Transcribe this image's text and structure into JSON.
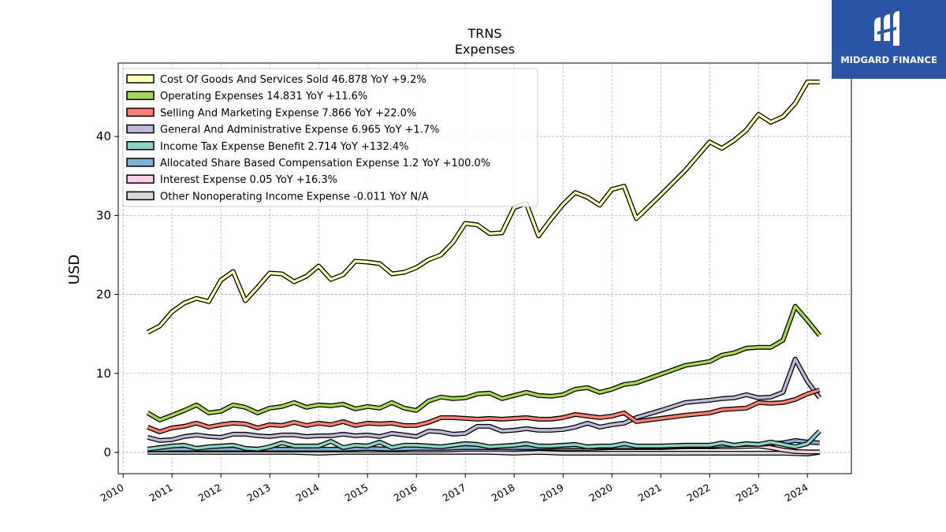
{
  "logo": {
    "text": "MIDGARD FINANCE",
    "color": "#2b55a6"
  },
  "chart_data": {
    "type": "line",
    "title": "TRNS",
    "subtitle": "Expenses",
    "xlabel": "",
    "ylabel": "USD",
    "xlim": [
      2009.9,
      2024.9
    ],
    "ylim": [
      -2.7,
      49.3
    ],
    "yticks": [
      0,
      10,
      20,
      30,
      40
    ],
    "xticks": [
      "2010",
      "2011",
      "2012",
      "2013",
      "2014",
      "2015",
      "2016",
      "2017",
      "2018",
      "2019",
      "2020",
      "2021",
      "2022",
      "2023",
      "2024"
    ],
    "grid": true,
    "legend_position": "top-left",
    "series": [
      {
        "name": "Cost Of Goods And Services Sold",
        "legend": "Cost Of Goods And Services Sold  46.878 YoY +9.2%",
        "color": "#ffffb3",
        "x": [
          2010.5,
          2010.75,
          2011.0,
          2011.25,
          2011.5,
          2011.75,
          2012.0,
          2012.25,
          2012.5,
          2012.75,
          2013.0,
          2013.25,
          2013.5,
          2013.75,
          2014.0,
          2014.25,
          2014.5,
          2014.75,
          2015.0,
          2015.25,
          2015.5,
          2015.75,
          2016.0,
          2016.25,
          2016.5,
          2016.75,
          2017.0,
          2017.25,
          2017.5,
          2017.75,
          2018.0,
          2018.25,
          2018.5,
          2018.75,
          2019.0,
          2019.25,
          2019.5,
          2019.75,
          2020.0,
          2020.25,
          2020.5,
          2021.0,
          2021.5,
          2022.0,
          2022.25,
          2022.5,
          2022.75,
          2023.0,
          2023.25,
          2023.5,
          2023.75,
          2024.0,
          2024.25
        ],
        "values": [
          15.2,
          16.0,
          17.8,
          18.9,
          19.5,
          19.1,
          21.8,
          22.9,
          19.2,
          20.9,
          22.7,
          22.6,
          21.6,
          22.3,
          23.6,
          21.9,
          22.5,
          24.2,
          24.1,
          23.9,
          22.6,
          22.8,
          23.4,
          24.4,
          25.0,
          26.6,
          29.0,
          28.8,
          27.7,
          27.8,
          31.0,
          31.5,
          27.4,
          29.5,
          31.4,
          32.9,
          32.3,
          31.3,
          33.3,
          33.7,
          29.6,
          32.6,
          35.7,
          39.3,
          38.5,
          39.5,
          40.8,
          42.8,
          41.8,
          42.5,
          44.2,
          46.9,
          46.9
        ]
      },
      {
        "name": "Operating Expenses",
        "legend": "Operating Expenses  14.831 YoY +11.6%",
        "color": "#a6d854",
        "x": [
          2010.5,
          2010.75,
          2011.0,
          2011.25,
          2011.5,
          2011.75,
          2012.0,
          2012.25,
          2012.5,
          2012.75,
          2013.0,
          2013.25,
          2013.5,
          2013.75,
          2014.0,
          2014.25,
          2014.5,
          2014.75,
          2015.0,
          2015.25,
          2015.5,
          2015.75,
          2016.0,
          2016.25,
          2016.5,
          2016.75,
          2017.0,
          2017.25,
          2017.5,
          2017.75,
          2018.0,
          2018.25,
          2018.5,
          2018.75,
          2019.0,
          2019.25,
          2019.5,
          2019.75,
          2020.0,
          2020.25,
          2020.5,
          2021.0,
          2021.5,
          2022.0,
          2022.25,
          2022.5,
          2022.75,
          2023.0,
          2023.25,
          2023.5,
          2023.75,
          2024.0,
          2024.25
        ],
        "values": [
          5.0,
          4.1,
          4.7,
          5.3,
          6.0,
          5.0,
          5.2,
          6.0,
          5.7,
          5.0,
          5.6,
          5.8,
          6.3,
          5.7,
          6.0,
          5.9,
          6.1,
          5.5,
          5.8,
          5.6,
          6.3,
          5.6,
          5.3,
          6.5,
          7.0,
          6.8,
          6.9,
          7.4,
          7.5,
          6.8,
          7.2,
          7.6,
          7.2,
          7.1,
          7.3,
          8.0,
          8.2,
          7.6,
          8.0,
          8.6,
          8.8,
          9.9,
          11.0,
          11.5,
          12.3,
          12.6,
          13.2,
          13.3,
          13.3,
          14.2,
          18.5,
          16.7,
          14.8
        ]
      },
      {
        "name": "Selling And Marketing Expense",
        "legend": "Selling And Marketing Expense  7.866 YoY +22.0%",
        "color": "#fb8072",
        "x": [
          2010.5,
          2010.75,
          2011.0,
          2011.25,
          2011.5,
          2011.75,
          2012.0,
          2012.25,
          2012.5,
          2012.75,
          2013.0,
          2013.25,
          2013.5,
          2013.75,
          2014.0,
          2014.25,
          2014.5,
          2014.75,
          2015.0,
          2015.25,
          2015.5,
          2015.75,
          2016.0,
          2016.25,
          2016.5,
          2016.75,
          2017.0,
          2017.25,
          2017.5,
          2017.75,
          2018.0,
          2018.25,
          2018.5,
          2018.75,
          2019.0,
          2019.25,
          2019.5,
          2019.75,
          2020.0,
          2020.25,
          2020.5,
          2021.0,
          2021.5,
          2022.0,
          2022.25,
          2022.5,
          2022.75,
          2023.0,
          2023.25,
          2023.5,
          2023.75,
          2024.0,
          2024.25
        ],
        "values": [
          3.2,
          2.6,
          3.1,
          3.3,
          3.7,
          3.2,
          3.5,
          3.7,
          3.6,
          3.1,
          3.5,
          3.4,
          3.8,
          3.4,
          3.7,
          3.5,
          3.9,
          3.4,
          3.7,
          3.6,
          3.7,
          3.4,
          3.4,
          3.8,
          4.4,
          4.4,
          4.3,
          4.2,
          4.3,
          4.2,
          4.3,
          4.4,
          4.2,
          4.2,
          4.4,
          4.8,
          4.6,
          4.4,
          4.6,
          5.0,
          3.9,
          4.3,
          4.7,
          5.0,
          5.4,
          5.5,
          5.6,
          6.3,
          6.2,
          6.3,
          6.7,
          7.4,
          7.9
        ]
      },
      {
        "name": "General And Administrative Expense",
        "legend": "General And Administrative Expense  6.965 YoY +1.7%",
        "color": "#bebada",
        "x": [
          2010.5,
          2010.75,
          2011.0,
          2011.25,
          2011.5,
          2011.75,
          2012.0,
          2012.25,
          2012.5,
          2012.75,
          2013.0,
          2013.25,
          2013.5,
          2013.75,
          2014.0,
          2014.25,
          2014.5,
          2014.75,
          2015.0,
          2015.25,
          2015.5,
          2015.75,
          2016.0,
          2016.25,
          2016.5,
          2016.75,
          2017.0,
          2017.25,
          2017.5,
          2017.75,
          2018.0,
          2018.25,
          2018.5,
          2018.75,
          2019.0,
          2019.25,
          2019.5,
          2019.75,
          2020.0,
          2020.25,
          2020.5,
          2021.0,
          2021.5,
          2022.0,
          2022.25,
          2022.5,
          2022.75,
          2023.0,
          2023.25,
          2023.5,
          2023.75,
          2024.0,
          2024.25
        ],
        "values": [
          1.9,
          1.5,
          1.6,
          2.0,
          2.2,
          2.0,
          1.9,
          2.3,
          2.3,
          2.1,
          2.0,
          2.2,
          2.2,
          2.0,
          2.1,
          2.1,
          2.3,
          2.1,
          2.2,
          2.0,
          2.4,
          2.2,
          2.0,
          2.7,
          2.6,
          2.3,
          2.4,
          3.3,
          3.3,
          2.7,
          2.8,
          3.0,
          2.8,
          2.8,
          2.9,
          3.2,
          3.7,
          3.2,
          3.5,
          3.7,
          4.4,
          5.3,
          6.3,
          6.6,
          6.8,
          6.9,
          7.3,
          6.9,
          7.0,
          7.6,
          11.8,
          9.0,
          6.9
        ]
      },
      {
        "name": "Income Tax Expense Benefit",
        "legend": "Income Tax Expense Benefit  2.714 YoY +132.4%",
        "color": "#8dd3c7",
        "x": [
          2010.5,
          2010.75,
          2011.0,
          2011.25,
          2011.5,
          2011.75,
          2012.0,
          2012.25,
          2012.5,
          2012.75,
          2013.0,
          2013.25,
          2013.5,
          2013.75,
          2014.0,
          2014.25,
          2014.5,
          2014.75,
          2015.0,
          2015.25,
          2015.5,
          2015.75,
          2016.0,
          2016.25,
          2016.5,
          2016.75,
          2017.0,
          2017.25,
          2017.5,
          2017.75,
          2018.0,
          2018.25,
          2018.5,
          2018.75,
          2019.0,
          2019.25,
          2019.5,
          2019.75,
          2020.0,
          2020.25,
          2020.5,
          2021.0,
          2021.5,
          2022.0,
          2022.25,
          2022.5,
          2022.75,
          2023.0,
          2023.25,
          2023.5,
          2023.75,
          2024.0,
          2024.25
        ],
        "values": [
          0.4,
          0.6,
          0.8,
          0.9,
          0.5,
          0.7,
          0.8,
          0.9,
          0.5,
          0.4,
          0.7,
          1.2,
          0.8,
          0.8,
          0.8,
          1.4,
          0.6,
          0.9,
          0.8,
          1.3,
          0.6,
          0.9,
          0.9,
          0.8,
          0.7,
          0.9,
          1.1,
          1.0,
          0.7,
          0.8,
          0.9,
          1.1,
          0.8,
          0.8,
          0.9,
          1.0,
          0.7,
          0.8,
          0.8,
          1.1,
          0.8,
          0.8,
          0.9,
          0.9,
          1.2,
          0.9,
          1.1,
          1.0,
          1.3,
          1.0,
          0.7,
          1.1,
          2.7
        ]
      },
      {
        "name": "Allocated Share Based Compensation Expense",
        "legend": "Allocated Share Based Compensation Expense  1.2 YoY +100.0%",
        "color": "#80b1d3",
        "x": [
          2010.5,
          2011.0,
          2011.5,
          2012.0,
          2012.5,
          2013.0,
          2013.5,
          2014.0,
          2014.5,
          2015.0,
          2015.5,
          2016.0,
          2016.5,
          2017.0,
          2017.5,
          2018.0,
          2018.5,
          2019.0,
          2019.5,
          2020.0,
          2020.5,
          2021.0,
          2021.5,
          2022.0,
          2022.25,
          2022.5,
          2022.75,
          2023.0,
          2023.25,
          2023.5,
          2023.75,
          2024.0,
          2024.25
        ],
        "values": [
          0.3,
          0.4,
          0.4,
          0.4,
          0.4,
          0.4,
          0.4,
          0.4,
          0.4,
          0.5,
          0.4,
          0.5,
          0.5,
          0.6,
          0.6,
          0.6,
          0.6,
          0.7,
          0.7,
          0.7,
          0.7,
          0.7,
          0.8,
          0.8,
          0.9,
          0.9,
          1.0,
          1.0,
          1.1,
          1.2,
          1.5,
          1.3,
          1.2
        ]
      },
      {
        "name": "Interest Expense",
        "legend": "Interest Expense  0.05 YoY +16.3%",
        "color": "#fccde5",
        "x": [
          2010.5,
          2011.0,
          2011.5,
          2012.0,
          2012.5,
          2013.0,
          2013.5,
          2014.0,
          2014.5,
          2015.0,
          2015.5,
          2016.0,
          2016.5,
          2017.0,
          2017.5,
          2018.0,
          2018.5,
          2019.0,
          2019.5,
          2020.0,
          2020.5,
          2021.0,
          2021.5,
          2022.0,
          2022.5,
          2023.0,
          2023.25,
          2023.5,
          2023.75,
          2024.0,
          2024.25
        ],
        "values": [
          0.3,
          0.3,
          0.3,
          0.3,
          0.3,
          0.3,
          0.3,
          0.3,
          0.3,
          0.3,
          0.3,
          0.3,
          0.3,
          0.4,
          0.4,
          0.4,
          0.5,
          0.5,
          0.5,
          0.6,
          0.6,
          0.6,
          0.7,
          0.7,
          0.7,
          0.8,
          0.6,
          0.3,
          0.1,
          0.05,
          0.05
        ]
      },
      {
        "name": "Other Nonoperating Income Expense",
        "legend": "Other Nonoperating Income Expense  -0.011 YoY N/A",
        "color": "#d9d9d9",
        "x": [
          2010.5,
          2011.0,
          2011.5,
          2012.0,
          2012.5,
          2013.0,
          2013.5,
          2014.0,
          2014.5,
          2015.0,
          2015.5,
          2016.0,
          2016.5,
          2017.0,
          2017.5,
          2018.0,
          2018.5,
          2019.0,
          2019.5,
          2020.0,
          2020.5,
          2021.0,
          2021.5,
          2022.0,
          2022.5,
          2023.0,
          2023.5,
          2024.0,
          2024.25
        ],
        "values": [
          0.0,
          0.0,
          0.0,
          0.0,
          0.0,
          0.0,
          0.0,
          -0.1,
          0.0,
          0.0,
          0.0,
          0.0,
          0.0,
          0.0,
          0.0,
          -0.1,
          0.0,
          -0.1,
          -0.1,
          -0.1,
          -0.1,
          -0.1,
          -0.1,
          -0.1,
          -0.1,
          -0.1,
          -0.1,
          -0.2,
          0.0
        ]
      }
    ]
  }
}
